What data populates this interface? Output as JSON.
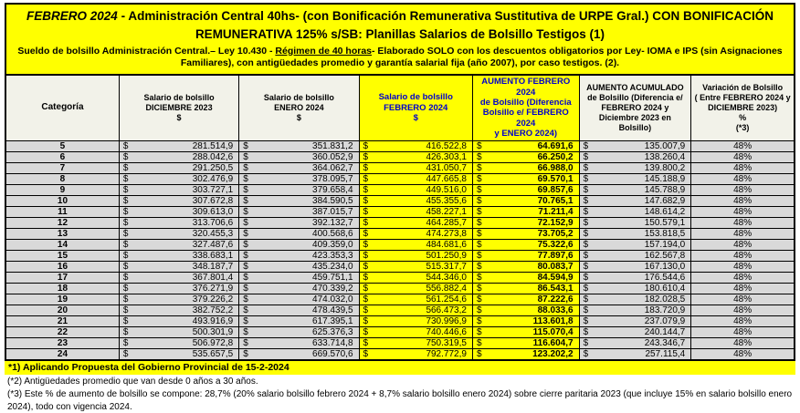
{
  "header": {
    "title_emphasis": "FEBRERO 2024",
    "title_rest": " - Administración Central 40hs- (con Bonificación Remunerativa Sustitutiva de URPE Gral.) CON BONIFICACIÓN REMUNERATIVA 125% s/SB: Planillas Salarios de Bolsillo Testigos (1)",
    "subtitle_pre": "Sueldo de bolsillo Administración Central.– Ley 10.430 - ",
    "subtitle_underline": "Régimen de 40 horas",
    "subtitle_post": "- Elaborado SOLO con los descuentos obligatorios por Ley- IOMA  e IPS (sin Asignaciones Familiares), con antigüedades promedio y garantía salarial fija (año 2007), por caso testigos. (2)."
  },
  "colors": {
    "highlight_yellow": "#ffff00",
    "header_blue_text": "#0000cc",
    "row_gray": "#d9d9d9",
    "header_cell_bg": "#f2f2e9"
  },
  "table": {
    "currency": "$",
    "columns": [
      {
        "key": "categoria",
        "label": "Categoría",
        "highlight": false,
        "money": false
      },
      {
        "key": "salario-diciembre-2023",
        "label": "Salario de bolsillo\nDICIEMBRE  2023\n$",
        "highlight": false,
        "money": true
      },
      {
        "key": "salario-enero-2024",
        "label": "Salario de bolsillo\nENERO 2024\n$",
        "highlight": false,
        "money": true
      },
      {
        "key": "salario-febrero-2024",
        "label": "Salario de bolsillo\nFEBRERO 2024\n$",
        "highlight": true,
        "money": true
      },
      {
        "key": "aumento-febrero-2024",
        "label": "AUMENTO FEBRERO 2024\nde  Bolsillo   (Diferencia\nBolsillo e/ FEBRERO 2024\ny ENERO 2024)",
        "highlight": true,
        "money": true,
        "bold_values": true
      },
      {
        "key": "aumento-acumulado",
        "label": "AUMENTO ACUMULADO\nde Bolsillo (Diferencia e/\nFEBRERO 2024 y\nDiciembre 2023 en\nBolsillo)",
        "highlight": false,
        "money": true
      },
      {
        "key": "variacion-bolsillo",
        "label": "Variación de Bolsillo\n( Entre FEBRERO 2024 y\nDICIEMBRE 2023)\n%\n(*3)",
        "highlight": false,
        "money": false
      }
    ],
    "rows": [
      [
        "5",
        "281.514,9",
        "351.831,2",
        "416.522,8",
        "64.691,6",
        "135.007,9",
        "48%"
      ],
      [
        "6",
        "288.042,6",
        "360.052,9",
        "426.303,1",
        "66.250,2",
        "138.260,4",
        "48%"
      ],
      [
        "7",
        "291.250,5",
        "364.062,7",
        "431.050,7",
        "66.988,0",
        "139.800,2",
        "48%"
      ],
      [
        "8",
        "302.476,9",
        "378.095,7",
        "447.665,8",
        "69.570,1",
        "145.188,9",
        "48%"
      ],
      [
        "9",
        "303.727,1",
        "379.658,4",
        "449.516,0",
        "69.857,6",
        "145.788,9",
        "48%"
      ],
      [
        "10",
        "307.672,8",
        "384.590,5",
        "455.355,6",
        "70.765,1",
        "147.682,9",
        "48%"
      ],
      [
        "11",
        "309.613,0",
        "387.015,7",
        "458.227,1",
        "71.211,4",
        "148.614,2",
        "48%"
      ],
      [
        "12",
        "313.706,6",
        "392.132,7",
        "464.285,7",
        "72.152,9",
        "150.579,1",
        "48%"
      ],
      [
        "13",
        "320.455,3",
        "400.568,6",
        "474.273,8",
        "73.705,2",
        "153.818,5",
        "48%"
      ],
      [
        "14",
        "327.487,6",
        "409.359,0",
        "484.681,6",
        "75.322,6",
        "157.194,0",
        "48%"
      ],
      [
        "15",
        "338.683,1",
        "423.353,3",
        "501.250,9",
        "77.897,6",
        "162.567,8",
        "48%"
      ],
      [
        "16",
        "348.187,7",
        "435.234,0",
        "515.317,7",
        "80.083,7",
        "167.130,0",
        "48%"
      ],
      [
        "17",
        "367.801,4",
        "459.751,1",
        "544.346,0",
        "84.594,9",
        "176.544,6",
        "48%"
      ],
      [
        "18",
        "376.271,9",
        "470.339,2",
        "556.882,4",
        "86.543,1",
        "180.610,4",
        "48%"
      ],
      [
        "19",
        "379.226,2",
        "474.032,0",
        "561.254,6",
        "87.222,6",
        "182.028,5",
        "48%"
      ],
      [
        "20",
        "382.752,2",
        "478.439,5",
        "566.473,2",
        "88.033,6",
        "183.720,9",
        "48%"
      ],
      [
        "21",
        "493.916,9",
        "617.395,1",
        "730.996,9",
        "113.601,8",
        "237.079,9",
        "48%"
      ],
      [
        "22",
        "500.301,9",
        "625.376,3",
        "740.446,6",
        "115.070,4",
        "240.144,7",
        "48%"
      ],
      [
        "23",
        "506.972,8",
        "633.714,8",
        "750.319,5",
        "116.604,7",
        "243.346,7",
        "48%"
      ],
      [
        "24",
        "535.657,5",
        "669.570,6",
        "792.772,9",
        "123.202,2",
        "257.115,4",
        "48%"
      ]
    ]
  },
  "footnotes": {
    "note1": "*1)   Aplicando Propuesta del Gobierno Provincial de 15-2-2024",
    "note2": "(*2) Antigüedades  promedio que van desde 0  años a 30 años.",
    "note3": "(*3) Este % de aumento de bolsillo se compone: 28,7% (20% salario bolsillo febrero 2024 + 8,7% salario bolsillo enero 2024) sobre cierre paritaria 2023 (que incluye 15% en salario bolsillo enero 2024), todo con vigencia 2024."
  }
}
